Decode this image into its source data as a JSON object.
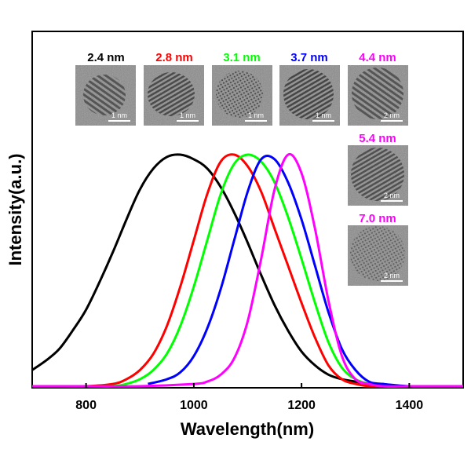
{
  "chart_data": {
    "type": "line",
    "title": "",
    "xlabel": "Wavelength(nm)",
    "ylabel": "Intensity(a.u.)",
    "xlim": [
      700,
      1500
    ],
    "ylim": [
      0,
      1.05
    ],
    "xticks": [
      800,
      1000,
      1200,
      1400
    ],
    "grid": false,
    "legend": "none",
    "series": [
      {
        "color": "#000000",
        "x": [
          700,
          725,
          750,
          775,
          800,
          825,
          850,
          875,
          900,
          925,
          950,
          975,
          1000,
          1025,
          1050,
          1075,
          1100,
          1125,
          1150,
          1175,
          1200,
          1225,
          1250,
          1275,
          1300,
          1325,
          1350,
          1375,
          1400,
          1425,
          1450,
          1475,
          1500
        ],
        "y": [
          0.07,
          0.11,
          0.16,
          0.24,
          0.33,
          0.45,
          0.58,
          0.72,
          0.85,
          0.94,
          0.99,
          1.0,
          0.98,
          0.94,
          0.86,
          0.75,
          0.62,
          0.48,
          0.35,
          0.24,
          0.15,
          0.09,
          0.05,
          0.03,
          0.02,
          0.01,
          0.01,
          0.0,
          0.0,
          0.0,
          0.0,
          0.0,
          0.0
        ]
      },
      {
        "color": "#ff0000",
        "x": [
          700,
          750,
          800,
          850,
          875,
          900,
          925,
          950,
          975,
          1000,
          1025,
          1050,
          1075,
          1100,
          1125,
          1150,
          1175,
          1200,
          1225,
          1250,
          1275,
          1300,
          1325,
          1350,
          1400,
          1450,
          1500
        ],
        "y": [
          0.0,
          0.0,
          0.0,
          0.01,
          0.03,
          0.07,
          0.14,
          0.26,
          0.43,
          0.63,
          0.83,
          0.97,
          1.0,
          0.95,
          0.84,
          0.68,
          0.52,
          0.36,
          0.21,
          0.09,
          0.03,
          0.01,
          0.0,
          0.0,
          0.0,
          0.0,
          0.0
        ]
      },
      {
        "color": "#00ff00",
        "x": [
          700,
          750,
          800,
          850,
          875,
          900,
          925,
          950,
          975,
          1000,
          1025,
          1050,
          1075,
          1100,
          1125,
          1150,
          1175,
          1200,
          1225,
          1250,
          1275,
          1300,
          1325,
          1350,
          1400,
          1450,
          1500
        ],
        "y": [
          0.0,
          0.0,
          0.0,
          0.0,
          0.01,
          0.03,
          0.07,
          0.14,
          0.26,
          0.43,
          0.63,
          0.83,
          0.96,
          1.0,
          0.97,
          0.88,
          0.73,
          0.55,
          0.36,
          0.19,
          0.08,
          0.03,
          0.01,
          0.0,
          0.0,
          0.0,
          0.0
        ]
      },
      {
        "color": "#0000ff",
        "x": [
          915,
          950,
          975,
          1000,
          1025,
          1050,
          1075,
          1100,
          1125,
          1150,
          1175,
          1200,
          1225,
          1250,
          1275,
          1300,
          1325,
          1350,
          1400,
          1450,
          1500
        ],
        "y": [
          0.01,
          0.03,
          0.06,
          0.13,
          0.25,
          0.42,
          0.63,
          0.84,
          0.98,
          0.98,
          0.88,
          0.72,
          0.52,
          0.32,
          0.16,
          0.07,
          0.02,
          0.01,
          0.0,
          0.0,
          0.0
        ]
      },
      {
        "color": "#ff00ff",
        "x": [
          700,
          800,
          900,
          1000,
          1025,
          1050,
          1075,
          1100,
          1125,
          1150,
          1175,
          1200,
          1225,
          1250,
          1275,
          1300,
          1325,
          1350,
          1400,
          1450,
          1500
        ],
        "y": [
          0.0,
          0.0,
          0.0,
          0.01,
          0.02,
          0.05,
          0.12,
          0.28,
          0.55,
          0.85,
          1.0,
          0.92,
          0.68,
          0.37,
          0.13,
          0.03,
          0.01,
          0.0,
          0.0,
          0.0,
          0.0
        ]
      }
    ]
  },
  "insets": {
    "labels": [
      {
        "text": "2.4 nm",
        "color": "#000000"
      },
      {
        "text": "2.8 nm",
        "color": "#ff0000"
      },
      {
        "text": "3.1 nm",
        "color": "#00ff00"
      },
      {
        "text": "3.7 nm",
        "color": "#0000ff"
      },
      {
        "text": "4.4 nm",
        "color": "#ff00ff"
      },
      {
        "text": "5.4 nm",
        "color": "#ff00ff"
      },
      {
        "text": "7.0 nm",
        "color": "#ff00ff"
      }
    ],
    "scalebars": [
      "1 nm",
      "1 nm",
      "1 nm",
      "1 nm",
      "2 nm",
      "2 nm",
      "2 nm"
    ]
  }
}
